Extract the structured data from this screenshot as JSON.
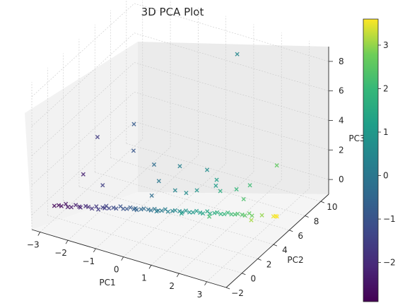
{
  "chart_data": {
    "type": "scatter",
    "projection": "3d",
    "title": "3D PCA Plot",
    "xlabel": "PC1",
    "ylabel": "PC2",
    "zlabel": "PC3",
    "marker": "x",
    "colormap": "viridis",
    "xlim": [
      -3.3,
      3.7
    ],
    "ylim": [
      -2,
      11
    ],
    "zlim": [
      -1,
      9
    ],
    "xticks": [
      "−3",
      "−2",
      "−1",
      "0",
      "1",
      "2",
      "3"
    ],
    "yticks": [
      "−2",
      "0",
      "2",
      "4",
      "6",
      "8",
      "10"
    ],
    "zticks": [
      "0",
      "2",
      "4",
      "6",
      "8"
    ],
    "grid": true,
    "colorbar": {
      "range": [
        -2.9,
        3.6
      ],
      "ticks": [
        "−2",
        "−1",
        "0",
        "1",
        "2",
        "3"
      ]
    },
    "points": [
      [
        -3.0,
        -0.2,
        -0.1,
        -2.8
      ],
      [
        -2.9,
        0.0,
        -0.1,
        -2.7
      ],
      [
        -2.8,
        0.0,
        -0.1,
        -2.7
      ],
      [
        -2.7,
        0.2,
        0.0,
        -2.6
      ],
      [
        -2.6,
        0.1,
        -0.1,
        -2.5
      ],
      [
        -2.5,
        0.2,
        -0.1,
        -2.4
      ],
      [
        -2.4,
        0.4,
        0.0,
        -2.3
      ],
      [
        -2.3,
        0.5,
        -0.1,
        -2.2
      ],
      [
        -2.2,
        0.3,
        0.0,
        -2.2
      ],
      [
        -2.1,
        0.6,
        0.0,
        -2.0
      ],
      [
        -2.0,
        0.6,
        0.0,
        -2.0
      ],
      [
        -1.9,
        0.7,
        -0.1,
        -1.8
      ],
      [
        -1.8,
        0.9,
        0.0,
        -1.7
      ],
      [
        -1.7,
        0.8,
        -0.1,
        -1.6
      ],
      [
        -1.6,
        1.0,
        0.0,
        -1.5
      ],
      [
        -1.5,
        1.1,
        0.1,
        -1.4
      ],
      [
        -1.4,
        1.1,
        0.0,
        -1.4
      ],
      [
        -1.3,
        1.3,
        0.0,
        -1.2
      ],
      [
        -1.2,
        1.3,
        0.0,
        -1.2
      ],
      [
        -1.1,
        1.5,
        0.1,
        -1.0
      ],
      [
        -1.0,
        1.5,
        0.0,
        -1.0
      ],
      [
        -0.9,
        1.6,
        0.0,
        -0.9
      ],
      [
        -0.8,
        1.7,
        0.1,
        -0.8
      ],
      [
        -0.7,
        1.8,
        0.0,
        -0.7
      ],
      [
        -0.6,
        1.8,
        0.0,
        -0.6
      ],
      [
        -0.5,
        2.0,
        0.0,
        -0.5
      ],
      [
        -0.4,
        2.0,
        0.1,
        -0.4
      ],
      [
        -0.3,
        2.2,
        0.0,
        -0.3
      ],
      [
        -0.2,
        2.2,
        0.0,
        -0.2
      ],
      [
        -0.1,
        2.3,
        0.1,
        -0.1
      ],
      [
        0.0,
        2.4,
        0.0,
        0.0
      ],
      [
        0.1,
        2.5,
        0.0,
        0.1
      ],
      [
        0.2,
        2.6,
        0.1,
        0.2
      ],
      [
        0.3,
        2.6,
        0.0,
        0.3
      ],
      [
        0.4,
        2.8,
        0.0,
        0.4
      ],
      [
        0.5,
        2.8,
        0.1,
        0.5
      ],
      [
        0.6,
        3.0,
        0.0,
        0.6
      ],
      [
        0.7,
        3.0,
        0.0,
        0.7
      ],
      [
        0.8,
        3.1,
        0.1,
        0.8
      ],
      [
        0.9,
        3.2,
        0.0,
        0.9
      ],
      [
        1.0,
        3.3,
        0.0,
        1.0
      ],
      [
        1.1,
        3.4,
        0.1,
        1.1
      ],
      [
        1.2,
        3.5,
        0.0,
        1.2
      ],
      [
        1.3,
        3.5,
        0.0,
        1.3
      ],
      [
        1.4,
        3.7,
        0.1,
        1.4
      ],
      [
        1.5,
        3.7,
        0.0,
        1.5
      ],
      [
        1.6,
        3.9,
        0.0,
        1.6
      ],
      [
        1.7,
        3.9,
        0.1,
        1.7
      ],
      [
        1.8,
        4.0,
        0.0,
        1.8
      ],
      [
        1.9,
        4.1,
        0.0,
        1.9
      ],
      [
        2.0,
        4.2,
        0.1,
        2.0
      ],
      [
        2.1,
        4.3,
        0.0,
        2.1
      ],
      [
        2.2,
        4.4,
        0.0,
        2.2
      ],
      [
        2.3,
        4.4,
        0.1,
        2.3
      ],
      [
        2.4,
        4.6,
        0.0,
        2.4
      ],
      [
        2.5,
        4.6,
        0.0,
        2.5
      ],
      [
        2.6,
        4.8,
        0.1,
        2.6
      ],
      [
        2.7,
        4.8,
        0.0,
        2.7
      ],
      [
        3.0,
        5.0,
        0.1,
        3.0
      ],
      [
        3.3,
        5.4,
        0.0,
        3.5
      ],
      [
        3.35,
        5.5,
        0.0,
        3.6
      ],
      [
        3.4,
        5.5,
        0.0,
        3.6
      ],
      [
        -1.6,
        1.0,
        1.5,
        -1.5
      ],
      [
        -2.1,
        0.3,
        2.3,
        -2.2
      ],
      [
        -1.9,
        1.4,
        4.4,
        -1.6
      ],
      [
        -1.0,
        2.8,
        3.3,
        -0.9
      ],
      [
        -0.9,
        2.5,
        5.3,
        -0.8
      ],
      [
        -0.6,
        4.0,
        2.0,
        -0.3
      ],
      [
        -0.2,
        3.2,
        1.5,
        0.0
      ],
      [
        0.1,
        4.8,
        1.9,
        0.3
      ],
      [
        0.3,
        3.5,
        1.0,
        0.4
      ],
      [
        -0.4,
        3.0,
        0.5,
        -0.3
      ],
      [
        0.5,
        4.2,
        0.6,
        0.6
      ],
      [
        0.8,
        4.5,
        0.8,
        0.9
      ],
      [
        1.2,
        5.6,
        1.2,
        1.2
      ],
      [
        1.5,
        5.0,
        0.9,
        1.6
      ],
      [
        1.8,
        6.0,
        0.7,
        1.9
      ],
      [
        2.2,
        5.5,
        0.5,
        2.3
      ],
      [
        2.0,
        7.0,
        0.6,
        2.1
      ],
      [
        1.0,
        6.2,
        0.4,
        1.1
      ],
      [
        0.6,
        6.5,
        1.1,
        0.7
      ],
      [
        1.4,
        7.5,
        8.9,
        0.5
      ],
      [
        2.4,
        9.0,
        1.2,
        2.6
      ],
      [
        -0.5,
        1.3,
        0.4,
        -0.6
      ],
      [
        0.9,
        2.2,
        0.4,
        1.2
      ],
      [
        1.7,
        2.9,
        0.3,
        2.2
      ],
      [
        -1.3,
        0.2,
        0.5,
        -1.6
      ],
      [
        0.2,
        1.5,
        0.5,
        0.1
      ],
      [
        2.9,
        4.0,
        0.2,
        3.1
      ]
    ]
  }
}
